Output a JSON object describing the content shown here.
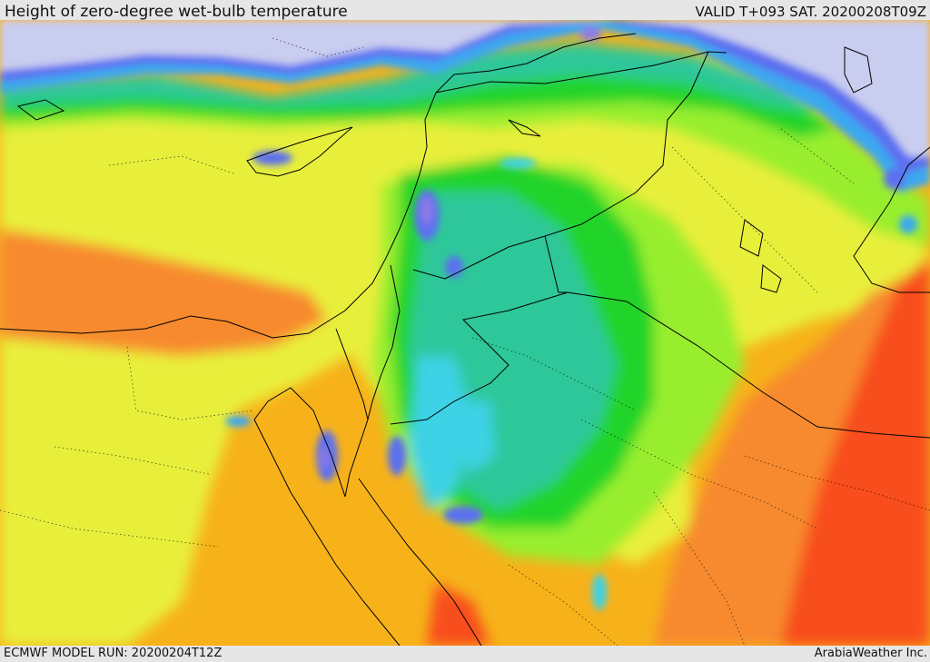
{
  "header": {
    "title": "Height of zero-degree wet-bulb temperature",
    "valid": "VALID T+093 SAT. 20200208T09Z"
  },
  "footer": {
    "model_run": "ECMWF MODEL RUN: 20200204T12Z",
    "credit": "ArabiaWeather Inc."
  },
  "palette": {
    "lowest": "#c9cdef",
    "blue": "#5c6ff0",
    "violet": "#8c7be6",
    "light_blue": "#3aa8f0",
    "cyan": "#3ed2e6",
    "teal": "#2fc79a",
    "green": "#22d42a",
    "lime": "#98ee2e",
    "yellow": "#e8ef3a",
    "orange": "#f7b21a",
    "dark_orange": "#f78a2e",
    "red": "#f84e1e",
    "border_line": "#000000"
  }
}
